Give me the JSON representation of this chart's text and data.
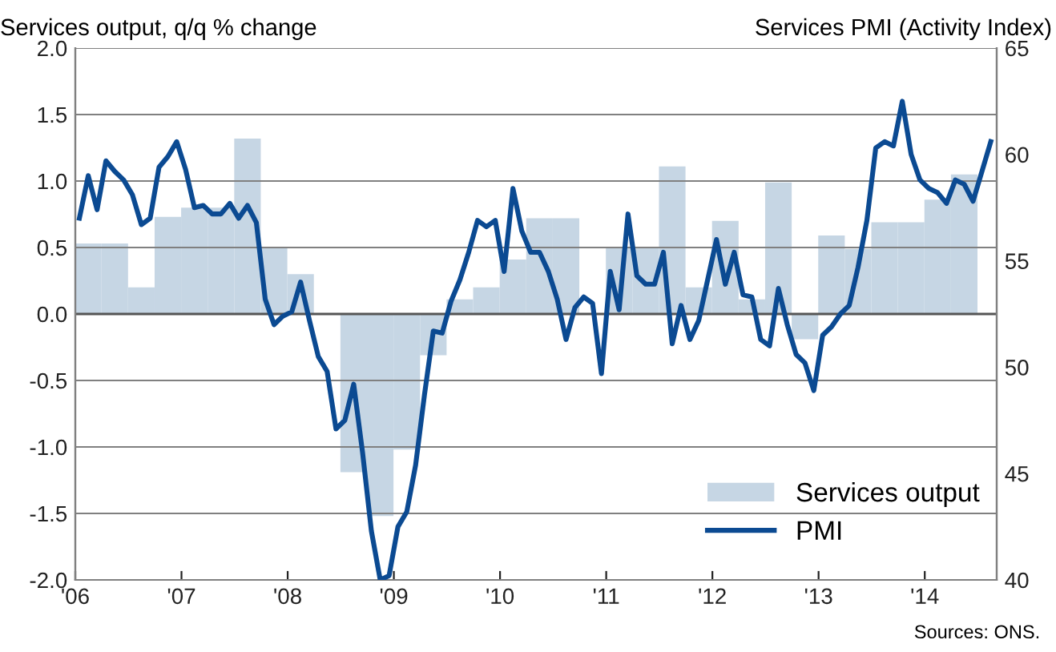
{
  "chart_data": {
    "type": "bar",
    "ylabel": "Services output, q/q % change",
    "y2label": "Services PMI (Activity Index)",
    "xlim": [
      "2006-01-01",
      "2014-09-05"
    ],
    "xticks": [
      {
        "value": "2006-01-01",
        "label": "'06"
      },
      {
        "value": "2007-01-01",
        "label": "'07"
      },
      {
        "value": "2008-01-01",
        "label": "'08"
      },
      {
        "value": "2009-01-01",
        "label": "'09"
      },
      {
        "value": "2010-01-01",
        "label": "'10"
      },
      {
        "value": "2011-01-01",
        "label": "'11"
      },
      {
        "value": "2012-01-01",
        "label": "'12"
      },
      {
        "value": "2013-01-01",
        "label": "'13"
      },
      {
        "value": "2014-01-01",
        "label": "'14"
      }
    ],
    "ylim": [
      -2,
      2
    ],
    "yticks": [
      {
        "value": -2,
        "label": "-2.0"
      },
      {
        "value": -1.5,
        "label": "-1.5"
      },
      {
        "value": -1,
        "label": "-1.0"
      },
      {
        "value": -0.5,
        "label": "-0.5"
      },
      {
        "value": 0,
        "label": "0.0"
      },
      {
        "value": 0.5,
        "label": "0.5"
      },
      {
        "value": 1,
        "label": "1.0"
      },
      {
        "value": 1.5,
        "label": "1.5"
      },
      {
        "value": 2,
        "label": "2.0"
      }
    ],
    "y2lim": [
      40,
      65
    ],
    "y2ticks": [
      40,
      45,
      50,
      55,
      60,
      65
    ],
    "grid": "y",
    "legend": "bottom right",
    "annotations": [
      "Sources: ONS."
    ],
    "series": [
      {
        "name": "Services output",
        "color": "#c6d6e4",
        "x": [
          "2006-02-15",
          "2006-05-15",
          "2006-08-15",
          "2006-11-15",
          "2007-02-15",
          "2007-05-15",
          "2007-08-15",
          "2007-11-15",
          "2008-02-15",
          "2008-05-15",
          "2008-08-15",
          "2008-11-15",
          "2009-02-15",
          "2009-05-15",
          "2009-08-15",
          "2009-11-15",
          "2010-02-15",
          "2010-05-15",
          "2010-08-15",
          "2010-11-15",
          "2011-02-15",
          "2011-05-15",
          "2011-08-15",
          "2011-11-15",
          "2012-02-15",
          "2012-05-15",
          "2012-08-15",
          "2012-11-15",
          "2013-02-15",
          "2013-05-15",
          "2013-08-15",
          "2013-11-15",
          "2014-02-15",
          "2014-05-15"
        ],
        "values": [
          0.53,
          0.53,
          0.2,
          0.73,
          0.8,
          0.8,
          1.32,
          0.5,
          0.3,
          0.0,
          -1.19,
          -1.52,
          -1.02,
          -0.31,
          0.11,
          0.2,
          0.41,
          0.72,
          0.72,
          0.0,
          0.5,
          0.5,
          1.11,
          0.2,
          0.7,
          0.11,
          0.99,
          -0.19,
          0.59,
          0.49,
          0.69,
          0.69,
          0.86,
          1.05
        ]
      },
      {
        "name": "PMI",
        "type": "line",
        "axis": "y2",
        "color": "#0b4a92",
        "x": [
          "2006-01-15",
          "2006-02-15",
          "2006-03-15",
          "2006-04-15",
          "2006-05-15",
          "2006-06-15",
          "2006-07-15",
          "2006-08-15",
          "2006-09-15",
          "2006-10-15",
          "2006-11-15",
          "2006-12-15",
          "2007-01-15",
          "2007-02-15",
          "2007-03-15",
          "2007-04-15",
          "2007-05-15",
          "2007-06-15",
          "2007-07-15",
          "2007-08-15",
          "2007-09-15",
          "2007-10-15",
          "2007-11-15",
          "2007-12-15",
          "2008-01-15",
          "2008-02-15",
          "2008-03-15",
          "2008-04-15",
          "2008-05-15",
          "2008-06-15",
          "2008-07-15",
          "2008-08-15",
          "2008-09-15",
          "2008-10-15",
          "2008-11-15",
          "2008-12-15",
          "2009-01-15",
          "2009-02-15",
          "2009-03-15",
          "2009-04-15",
          "2009-05-15",
          "2009-06-15",
          "2009-07-15",
          "2009-08-15",
          "2009-09-15",
          "2009-10-15",
          "2009-11-15",
          "2009-12-15",
          "2010-01-15",
          "2010-02-15",
          "2010-03-15",
          "2010-04-15",
          "2010-05-15",
          "2010-06-15",
          "2010-07-15",
          "2010-08-15",
          "2010-09-15",
          "2010-10-15",
          "2010-11-15",
          "2010-12-15",
          "2011-01-15",
          "2011-02-15",
          "2011-03-15",
          "2011-04-15",
          "2011-05-15",
          "2011-06-15",
          "2011-07-15",
          "2011-08-15",
          "2011-09-15",
          "2011-10-15",
          "2011-11-15",
          "2011-12-15",
          "2012-01-15",
          "2012-02-15",
          "2012-03-15",
          "2012-04-15",
          "2012-05-15",
          "2012-06-15",
          "2012-07-15",
          "2012-08-15",
          "2012-09-15",
          "2012-10-15",
          "2012-11-15",
          "2012-12-15",
          "2013-01-15",
          "2013-02-15",
          "2013-03-15",
          "2013-04-15",
          "2013-05-15",
          "2013-06-15",
          "2013-07-15",
          "2013-08-15",
          "2013-09-15",
          "2013-10-15",
          "2013-11-15",
          "2013-12-15",
          "2014-01-15",
          "2014-02-15",
          "2014-03-15",
          "2014-04-15",
          "2014-05-15",
          "2014-06-15",
          "2014-07-15",
          "2014-08-15"
        ],
        "values": [
          57.0,
          59.0,
          57.4,
          59.7,
          59.2,
          58.8,
          58.1,
          56.7,
          57.0,
          59.4,
          59.9,
          60.6,
          59.3,
          57.5,
          57.6,
          57.2,
          57.2,
          57.7,
          57.0,
          57.6,
          56.8,
          53.2,
          52.0,
          52.4,
          52.6,
          54.0,
          52.2,
          50.5,
          49.8,
          47.1,
          47.5,
          49.2,
          46.0,
          42.3,
          40.0,
          40.2,
          42.5,
          43.2,
          45.4,
          48.7,
          51.7,
          51.6,
          53.1,
          54.1,
          55.4,
          56.9,
          56.6,
          56.9,
          54.5,
          58.4,
          56.4,
          55.4,
          55.4,
          54.5,
          53.2,
          51.3,
          52.8,
          53.3,
          53.0,
          49.7,
          54.5,
          52.7,
          57.2,
          54.3,
          53.9,
          53.9,
          55.4,
          51.1,
          52.9,
          51.3,
          52.2,
          54.1,
          56.0,
          53.9,
          55.4,
          53.4,
          53.3,
          51.3,
          51.0,
          53.7,
          52.0,
          50.6,
          50.2,
          48.9,
          51.5,
          51.9,
          52.5,
          52.9,
          54.7,
          56.9,
          60.3,
          60.6,
          60.4,
          62.5,
          60.0,
          58.8,
          58.4,
          58.2,
          57.7,
          58.8,
          58.6,
          57.8,
          59.2,
          60.6
        ]
      }
    ]
  }
}
